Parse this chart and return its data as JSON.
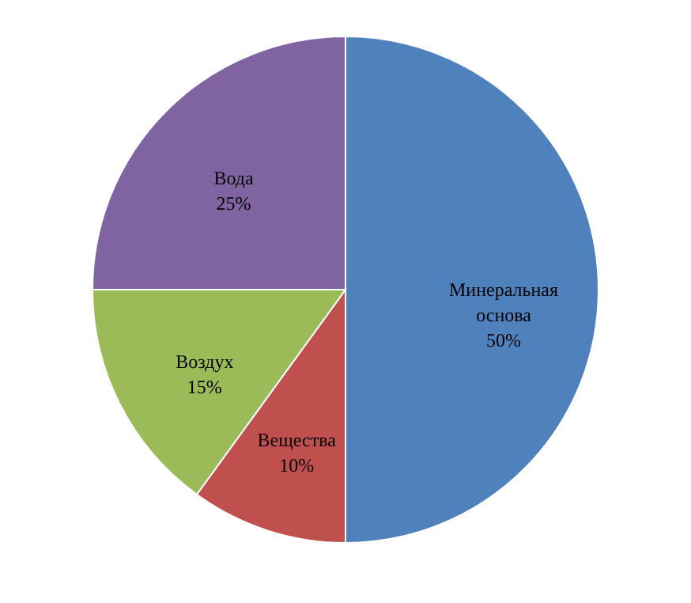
{
  "chart_data": {
    "type": "pie",
    "categories": [
      "Минеральная основа",
      "Вещества",
      "Воздух",
      "Вода"
    ],
    "values": [
      50,
      10,
      15,
      25
    ],
    "colors": [
      "#4f81bd",
      "#c0504d",
      "#9bbb59",
      "#8064a2"
    ],
    "value_labels": [
      "50%",
      "10%",
      "15%",
      "25%"
    ]
  }
}
